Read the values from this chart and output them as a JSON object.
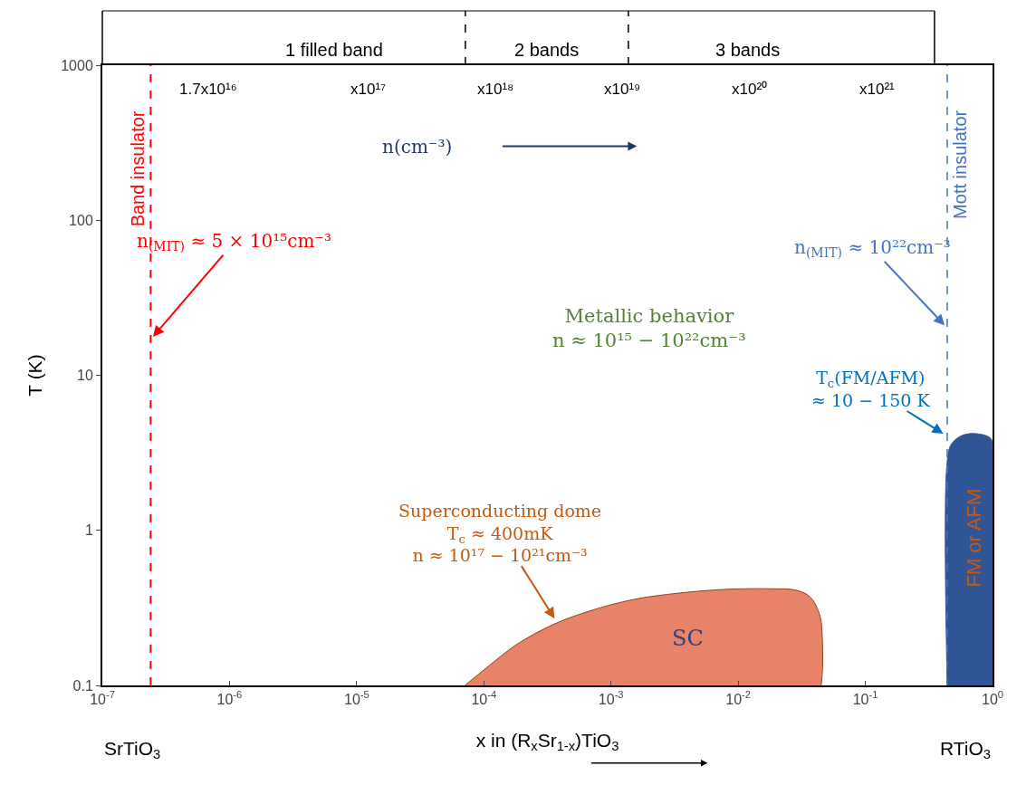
{
  "chart_data": {
    "type": "area",
    "xlabel": "x in (R$_{x}$Sr$_{1-x}$)TiO$_{3}$",
    "ylabel": "T (K)",
    "log": "xy",
    "xlim": [
      1e-07,
      1
    ],
    "xticks": [
      {
        "value": 1e-07,
        "label": "10$^{-7}$"
      },
      {
        "value": 1e-06,
        "label": "10$^{-6}$"
      },
      {
        "value": 1e-05,
        "label": "10$^{-5}$"
      },
      {
        "value": 0.0001,
        "label": "10$^{-4}$"
      },
      {
        "value": 0.001,
        "label": "10$^{-3}$"
      },
      {
        "value": 0.01,
        "label": "10$^{-2}$"
      },
      {
        "value": 0.1,
        "label": "10$^{-1}$"
      },
      {
        "value": 1,
        "label": "10$^{0}$"
      }
    ],
    "ylim": [
      0.1,
      1000
    ],
    "yticks": [
      0.1,
      1,
      10,
      100,
      1000
    ],
    "legend": false,
    "series": [
      {
        "name": "SC",
        "color": "#e8836a",
        "x": [
          7.1e-05,
          0.00011,
          0.00018,
          0.000347,
          0.00067,
          0.00152,
          0.00344,
          0.0078,
          0.0177,
          0.029,
          0.037,
          0.044,
          0.046,
          0.046,
          0.045
        ],
        "values": [
          0.1,
          0.134,
          0.183,
          0.246,
          0.301,
          0.359,
          0.394,
          0.416,
          0.42,
          0.41,
          0.37,
          0.28,
          0.188,
          0.126,
          0.1
        ]
      },
      {
        "name": "FM or AFM",
        "color": "#2f5597",
        "x": [
          0.44,
          0.44,
          0.475,
          0.58,
          0.75,
          0.97,
          1.0,
          1.0
        ],
        "values": [
          0.1,
          2.77,
          3.6,
          4.1,
          4.2,
          3.9,
          3.16,
          0.1
        ]
      }
    ],
    "ref_lines": [
      {
        "axis": "x",
        "value": 2.4e-07,
        "label": "Band insulator",
        "color": "#ff0000",
        "line_style": "dashed"
      },
      {
        "axis": "x",
        "value": 0.44,
        "label": "Mott insulator",
        "color": "#4472c4",
        "line_style": "dashed"
      }
    ],
    "annotations": [
      {
        "text": "n$_{(MIT)}$ ≈ 5 × 10¹⁵cm⁻³",
        "x": 2.5e-07,
        "y": 17.7
      },
      {
        "text": "n$_{(MIT)}$ ≈ 10²²cm⁻³",
        "x": 0.42,
        "y": 21
      },
      "Metallic behavior\nn ≈ 10¹⁵ − 10²²cm⁻³",
      {
        "text": "T$_{c}$(FM/AFM)\n≈ 10 − 150 K",
        "x": 0.41,
        "y": 4.2
      },
      {
        "text": "Superconducting dome\nT$_{c}$ ≈ 400mK\nn ≈ 10¹⁷ − 10²¹cm⁻³",
        "x": 0.00036,
        "y": 0.27
      },
      "SrTiO$_{3}$",
      "RTiO$_{3}$",
      "n(cm⁻³)",
      "1.7x10¹⁶",
      "x10¹⁷",
      "x10¹⁸",
      "x10¹⁹",
      "x10²⁰",
      "x10²¹",
      "1 filled band",
      "2 bands",
      "3 bands"
    ]
  }
}
